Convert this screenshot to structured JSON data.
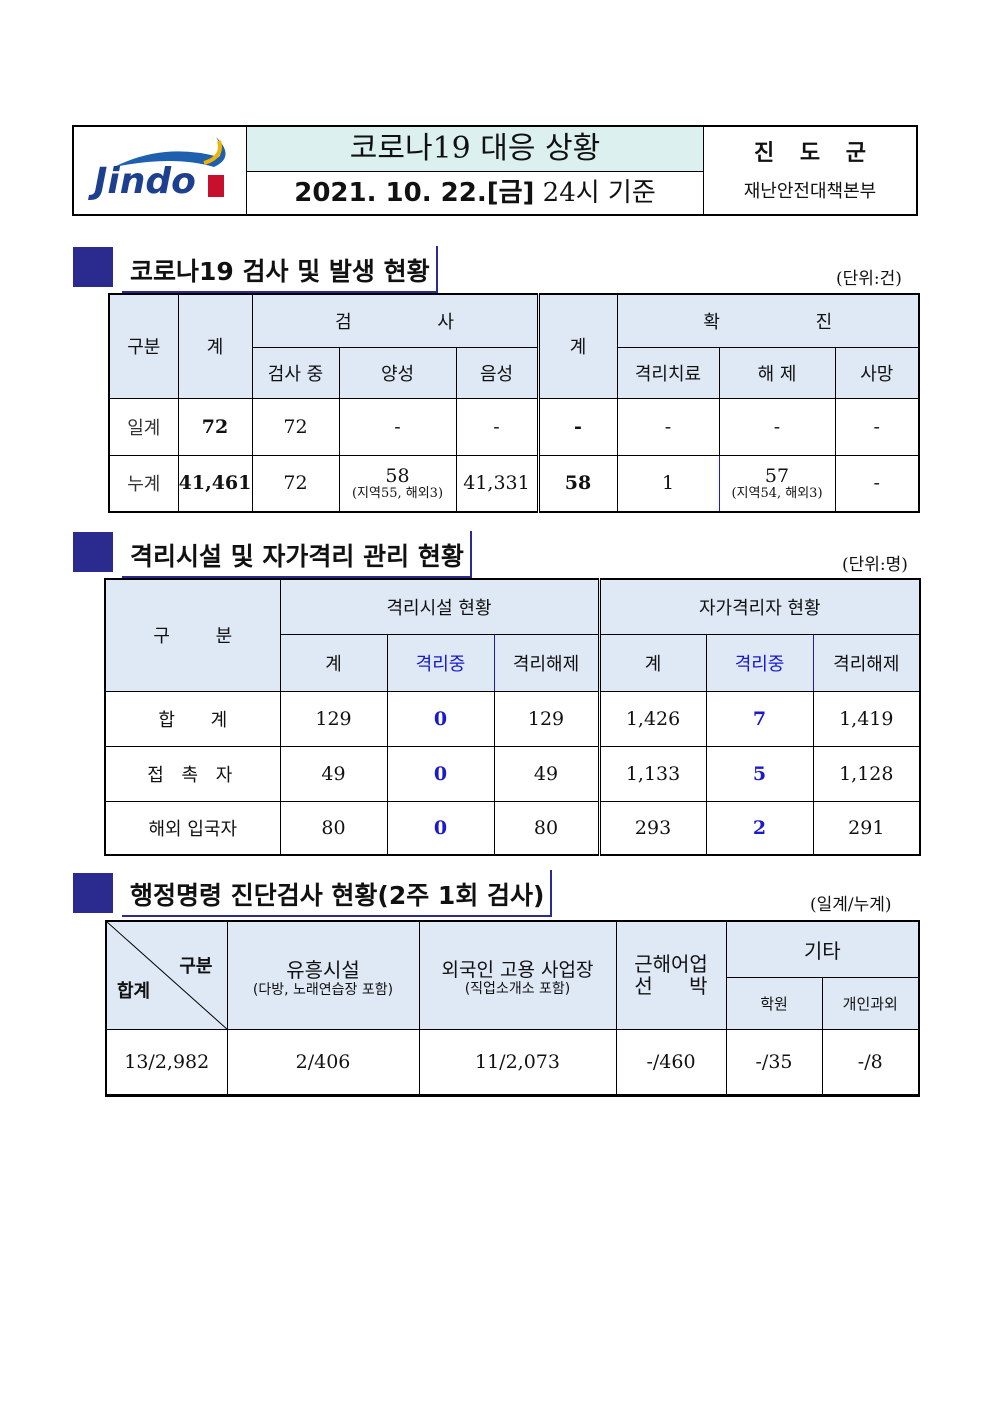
{
  "header": {
    "logo_text": "Jindo",
    "title": "코로나19 대응 상황",
    "date_bold": "2021. 10. 22.[금]",
    "date_rest": "24시 기준",
    "org": "진 도 군",
    "dept": "재난안전대책본부"
  },
  "s1": {
    "title": "코로나19 검사 및 발생 현황",
    "unit": "(단위:건)",
    "h": {
      "gubun": "구분",
      "total": "계",
      "test": "검 사",
      "testing": "검사 중",
      "positive": "양성",
      "negative": "음성",
      "total2": "계",
      "confirmed": "확 진",
      "isolation": "격리치료",
      "released": "해 제",
      "death": "사망"
    },
    "rows": [
      {
        "label": "일계",
        "total": "72",
        "testing": "72",
        "positive": "-",
        "positive_sub": "",
        "negative": "-",
        "total2": "-",
        "isolation": "-",
        "released": "-",
        "released_sub": "",
        "death": "-"
      },
      {
        "label": "누계",
        "total": "41,461",
        "testing": "72",
        "positive": "58",
        "positive_sub": "(지역55, 해외3)",
        "negative": "41,331",
        "total2": "58",
        "isolation": "1",
        "released": "57",
        "released_sub": "(지역54, 해외3)",
        "death": "-"
      }
    ]
  },
  "s2": {
    "title": "격리시설 및 자가격리 관리 현황",
    "unit": "(단위:명)",
    "h": {
      "gubun": "구 분",
      "facility": "격리시설 현황",
      "self": "자가격리자 현황",
      "total": "계",
      "ongoing": "격리중",
      "released": "격리해제"
    },
    "rows": [
      {
        "label": "합 계",
        "f_total": "129",
        "f_on": "0",
        "f_rel": "129",
        "s_total": "1,426",
        "s_on": "7",
        "s_rel": "1,419"
      },
      {
        "label": "접 촉 자",
        "f_total": "49",
        "f_on": "0",
        "f_rel": "49",
        "s_total": "1,133",
        "s_on": "5",
        "s_rel": "1,128"
      },
      {
        "label": "해외 입국자",
        "f_total": "80",
        "f_on": "0",
        "f_rel": "80",
        "s_total": "293",
        "s_on": "2",
        "s_rel": "291"
      }
    ]
  },
  "s3": {
    "title": "행정명령 진단검사 현황(2주 1회 검사)",
    "unit": "(일계/누계)",
    "h": {
      "gubun": "구분",
      "sum": "합계",
      "ent": "유흥시설",
      "ent_sub": "(다방, 노래연습장 포함)",
      "foreign": "외국인 고용 사업장",
      "foreign_sub": "(직업소개소 포함)",
      "fish1": "근해어업",
      "fish2": "선 박",
      "etc": "기타",
      "academy": "학원",
      "tutor": "개인과외"
    },
    "row": {
      "sum": "13/2,982",
      "ent": "2/406",
      "foreign": "11/2,073",
      "fish": "-/460",
      "academy": "-/35",
      "tutor": "-/8"
    }
  }
}
